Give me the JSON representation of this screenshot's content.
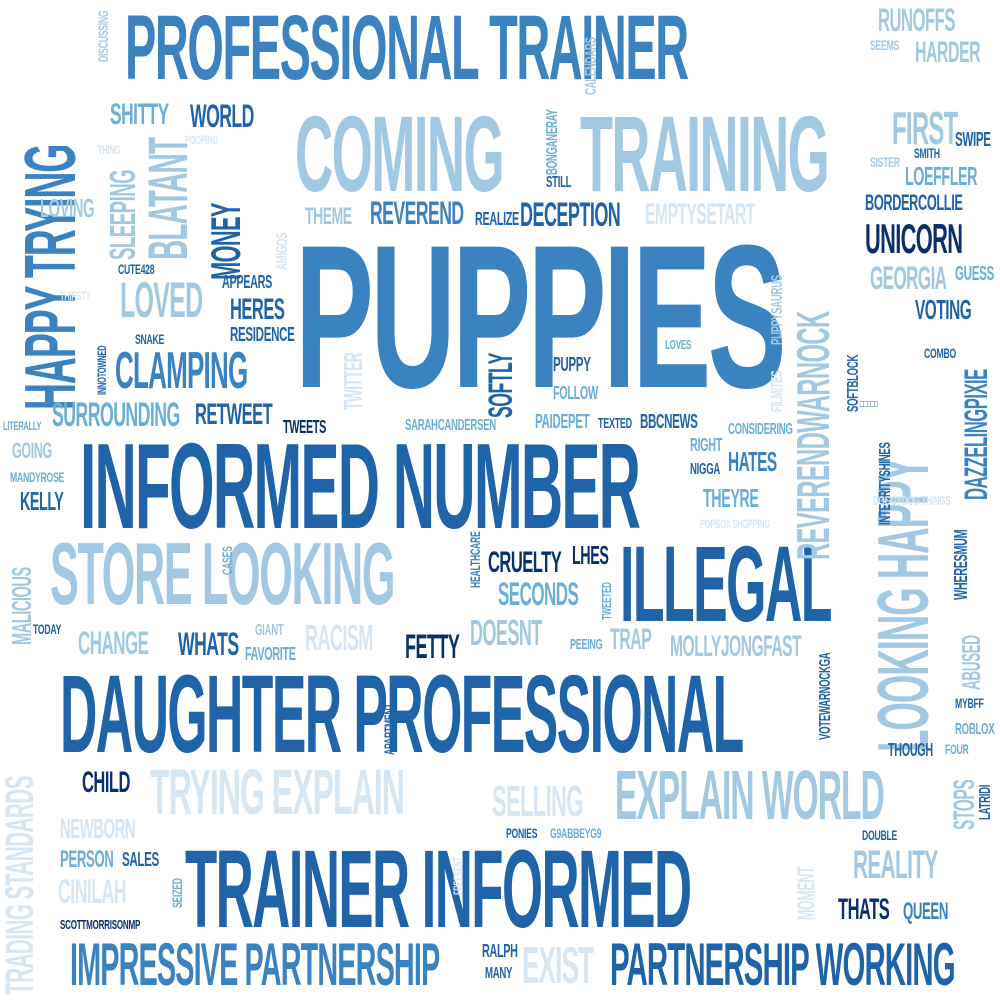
{
  "words": [
    {
      "text": "PUPPIES",
      "color": "c3"
    },
    {
      "text": "PROFESSIONAL TRAINER",
      "color": "c3"
    },
    {
      "text": "COMING",
      "color": "c5"
    },
    {
      "text": "TRAINING",
      "color": "c5"
    },
    {
      "text": "HAPPY TRYING",
      "color": "c3"
    },
    {
      "text": "INFORMED NUMBER",
      "color": "c2"
    },
    {
      "text": "STORE LOOKING",
      "color": "c5"
    },
    {
      "text": "ILLEGAL",
      "color": "c2"
    },
    {
      "text": "DAUGHTER PROFESSIONAL",
      "color": "c2"
    },
    {
      "text": "TRAINER INFORMED",
      "color": "c2"
    },
    {
      "text": "TRYING EXPLAIN",
      "color": "c6"
    },
    {
      "text": "EXPLAIN WORLD",
      "color": "c5"
    },
    {
      "text": "IMPRESSIVE PARTNERSHIP",
      "color": "c3"
    },
    {
      "text": "PARTNERSHIP WORKING",
      "color": "c2"
    },
    {
      "text": "LOOKING HAPPY",
      "color": "c5"
    },
    {
      "text": "REVERENDWARNOCK",
      "color": "c5"
    },
    {
      "text": "TRADING STANDARDS",
      "color": "c6"
    },
    {
      "text": "SHITTY",
      "color": "c4"
    },
    {
      "text": "WORLD",
      "color": "c2"
    },
    {
      "text": "MONEY",
      "color": "c2"
    },
    {
      "text": "BLATANT",
      "color": "c5"
    },
    {
      "text": "SLEEPING",
      "color": "c5"
    },
    {
      "text": "LOVING",
      "color": "c5"
    },
    {
      "text": "LOVED",
      "color": "c5"
    },
    {
      "text": "HERES",
      "color": "c2"
    },
    {
      "text": "RESIDENCE",
      "color": "c2"
    },
    {
      "text": "APPEARS",
      "color": "c2"
    },
    {
      "text": "CLAMPING",
      "color": "c3"
    },
    {
      "text": "SURROUNDING",
      "color": "c4"
    },
    {
      "text": "RETWEET",
      "color": "c2"
    },
    {
      "text": "TWEETS",
      "color": "c1"
    },
    {
      "text": "THEME",
      "color": "c5"
    },
    {
      "text": "REVEREND",
      "color": "c3"
    },
    {
      "text": "REALIZE",
      "color": "c2"
    },
    {
      "text": "DECEPTION",
      "color": "c2"
    },
    {
      "text": "EMPTYSETART",
      "color": "c6"
    },
    {
      "text": "UNICORN",
      "color": "c1"
    },
    {
      "text": "GEORGIA",
      "color": "c5"
    },
    {
      "text": "VOTING",
      "color": "c2"
    },
    {
      "text": "GUESS",
      "color": "c4"
    },
    {
      "text": "BORDERCOLLIE",
      "color": "c2"
    },
    {
      "text": "LOEFFLER",
      "color": "c4"
    },
    {
      "text": "FIRST",
      "color": "c5"
    },
    {
      "text": "SWIPE",
      "color": "c2"
    },
    {
      "text": "SMITH",
      "color": "c2"
    },
    {
      "text": "SISTER",
      "color": "c5"
    },
    {
      "text": "RUNOFFS",
      "color": "c5"
    },
    {
      "text": "HARDER",
      "color": "c5"
    },
    {
      "text": "SEEMS",
      "color": "c5"
    },
    {
      "text": "DISCUSSING",
      "color": "c5"
    },
    {
      "text": "CALENDARS",
      "color": "c5"
    },
    {
      "text": "BONGANERAY",
      "color": "c4"
    },
    {
      "text": "STILL",
      "color": "c2"
    },
    {
      "text": "SOFTLY",
      "color": "c2"
    },
    {
      "text": "PUPPY",
      "color": "c2"
    },
    {
      "text": "FOLLOW",
      "color": "c4"
    },
    {
      "text": "PAIDEPET",
      "color": "c4"
    },
    {
      "text": "TEXTED",
      "color": "c2"
    },
    {
      "text": "BBCNEWS",
      "color": "c2"
    },
    {
      "text": "SARAHCANDERSEN",
      "color": "c4"
    },
    {
      "text": "TWITTER",
      "color": "c6"
    },
    {
      "text": "LOVES",
      "color": "c4"
    },
    {
      "text": "RIGHT",
      "color": "c4"
    },
    {
      "text": "HATES",
      "color": "c3"
    },
    {
      "text": "NIGGA",
      "color": "c2"
    },
    {
      "text": "THEYRE",
      "color": "c4"
    },
    {
      "text": "CONSIDERING",
      "color": "c4"
    },
    {
      "text": "INTEGRITYSHINES",
      "color": "c2"
    },
    {
      "text": "DAZZELINGPIXIE",
      "color": "c3"
    },
    {
      "text": "SOFTBLOCK",
      "color": "c2"
    },
    {
      "text": "COMBO",
      "color": "c2"
    },
    {
      "text": "WHERESMUM",
      "color": "c2"
    },
    {
      "text": "ABUSED",
      "color": "c5"
    },
    {
      "text": "CRUELTY",
      "color": "c1"
    },
    {
      "text": "LHES",
      "color": "c1"
    },
    {
      "text": "SECONDS",
      "color": "c4"
    },
    {
      "text": "HEALTHCARE",
      "color": "c3"
    },
    {
      "text": "TWEETED",
      "color": "c4"
    },
    {
      "text": "DOESNT",
      "color": "c5"
    },
    {
      "text": "PEEING",
      "color": "c4"
    },
    {
      "text": "TRAP",
      "color": "c5"
    },
    {
      "text": "MOLLYJONGFAST",
      "color": "c5"
    },
    {
      "text": "RACISM",
      "color": "c6"
    },
    {
      "text": "FETTY",
      "color": "c1"
    },
    {
      "text": "CHANGE",
      "color": "c5"
    },
    {
      "text": "WHATS",
      "color": "c2"
    },
    {
      "text": "GIANT",
      "color": "c5"
    },
    {
      "text": "FAVORITE",
      "color": "c4"
    },
    {
      "text": "CASES",
      "color": "c4"
    },
    {
      "text": "TODAY",
      "color": "c2"
    },
    {
      "text": "MALICIOUS",
      "color": "c5"
    },
    {
      "text": "KELLY",
      "color": "c2"
    },
    {
      "text": "MANDYROSE",
      "color": "c4"
    },
    {
      "text": "GOING",
      "color": "c5"
    },
    {
      "text": "LITERALLY",
      "color": "c4"
    },
    {
      "text": "CUTE428",
      "color": "c2"
    },
    {
      "text": "THIRSTY",
      "color": "c6"
    },
    {
      "text": "SNAKE",
      "color": "c2"
    },
    {
      "text": "INNOTOWNED",
      "color": "c2"
    },
    {
      "text": "CHILD",
      "color": "c1"
    },
    {
      "text": "NEWBORN",
      "color": "c6"
    },
    {
      "text": "PERSON",
      "color": "c4"
    },
    {
      "text": "SALES",
      "color": "c2"
    },
    {
      "text": "CINILAH",
      "color": "c6"
    },
    {
      "text": "SCOTTMORRISONMP",
      "color": "c1"
    },
    {
      "text": "SEIZED",
      "color": "c4"
    },
    {
      "text": "SELLING",
      "color": "c6"
    },
    {
      "text": "PONIES",
      "color": "c2"
    },
    {
      "text": "G9ABBEYG9",
      "color": "c4"
    },
    {
      "text": "APARTMENT",
      "color": "c2"
    },
    {
      "text": "RALPH",
      "color": "c2"
    },
    {
      "text": "MANY",
      "color": "c2"
    },
    {
      "text": "EXIST",
      "color": "c6"
    },
    {
      "text": "MOMENT",
      "color": "c6"
    },
    {
      "text": "REALITY",
      "color": "c5"
    },
    {
      "text": "THATS",
      "color": "c1"
    },
    {
      "text": "QUEEN",
      "color": "c3"
    },
    {
      "text": "DOUBLE",
      "color": "c2"
    },
    {
      "text": "THOUGH",
      "color": "c2"
    },
    {
      "text": "ROBLOX",
      "color": "c4"
    },
    {
      "text": "MYBFF",
      "color": "c2"
    },
    {
      "text": "STOPS",
      "color": "c5"
    },
    {
      "text": "LATRIDI",
      "color": "c2"
    },
    {
      "text": "VOTEWARNOCKGA",
      "color": "c2"
    },
    {
      "text": "FOUR",
      "color": "c4"
    },
    {
      "text": "FREESENT",
      "color": "c6"
    },
    {
      "text": "AMIGOS",
      "color": "c6"
    },
    {
      "text": "THING",
      "color": "c6"
    },
    {
      "text": "POOPING",
      "color": "c6"
    },
    {
      "text": "PUPPYSAURUS",
      "color": "c5"
    },
    {
      "text": "FILMITES",
      "color": "c6"
    },
    {
      "text": "DOGGYDOG THINGS",
      "color": "c6"
    },
    {
      "text": "POPBOX SHOPPING",
      "color": "c6"
    },
    {
      "text": "□□□□□",
      "color": "c3"
    }
  ]
}
